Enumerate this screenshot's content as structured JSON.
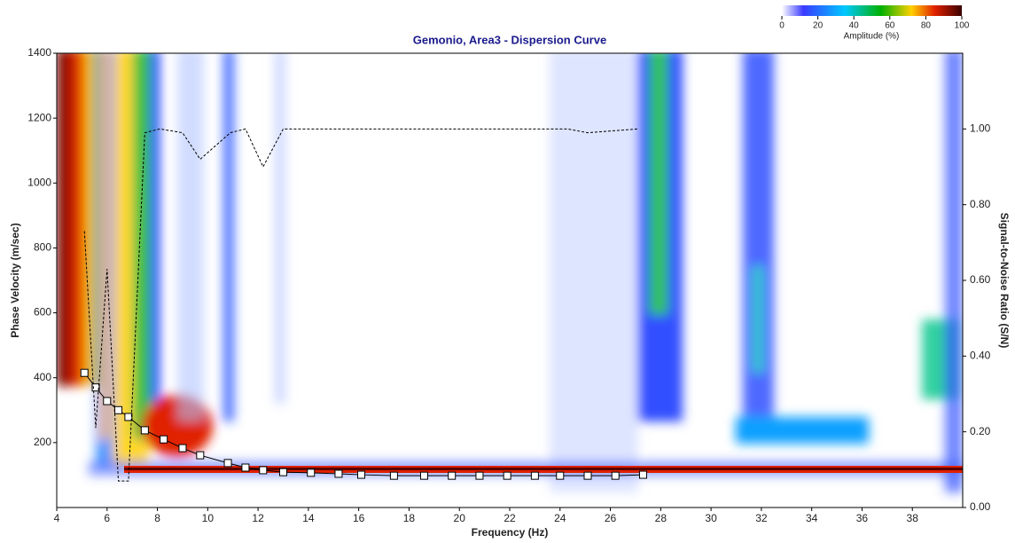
{
  "chart_data": {
    "type": "scatter",
    "title": "Gemonio, Area3 - Dispersion Curve",
    "x_label": "Frequency (Hz)",
    "y_label": "Phase Velocity (m/sec)",
    "y2_label": "Signal-to-Noise Ratio (S/N)",
    "xlim": [
      4,
      40
    ],
    "xticks": [
      4,
      6,
      8,
      10,
      12,
      14,
      16,
      18,
      20,
      22,
      24,
      26,
      28,
      30,
      32,
      34,
      36,
      38
    ],
    "ylim": [
      0,
      1400
    ],
    "yticks": [
      200,
      400,
      600,
      800,
      1000,
      1200,
      1400
    ],
    "y2lim": [
      0,
      1.2
    ],
    "y2ticks": [
      {
        "value": 0,
        "label": "0.00"
      },
      {
        "value": 0.2,
        "label": "0.20"
      },
      {
        "value": 0.4,
        "label": "0.40"
      },
      {
        "value": 0.6,
        "label": "0.60"
      },
      {
        "value": 0.8,
        "label": "0.80"
      },
      {
        "value": 1,
        "label": "1.00"
      }
    ],
    "colorbar": {
      "label": "Amplitude (%)",
      "lim": [
        0,
        100
      ],
      "ticks": [
        0,
        20,
        40,
        60,
        80,
        100
      ]
    },
    "series": [
      {
        "color": "#ffffff",
        "x": [
          5.1,
          5.55,
          6.0,
          6.45,
          6.85,
          7.5,
          8.25,
          9.0,
          9.7,
          10.8,
          11.5,
          12.2,
          13.0,
          14.1,
          15.2,
          16.1,
          17.4,
          18.6,
          19.7,
          20.8,
          21.9,
          23.0,
          24.0,
          25.1,
          26.2,
          27.3
        ],
        "values": [
          415,
          370,
          328,
          300,
          279,
          238,
          210,
          183,
          161,
          137,
          123,
          115,
          109,
          107,
          104,
          101,
          98,
          98,
          98,
          98,
          98,
          98,
          98,
          98,
          98,
          101
        ]
      },
      {
        "color": "#000000",
        "axis": "y2",
        "line": "dashed",
        "x": [
          5.1,
          5.55,
          6.0,
          6.45,
          6.85,
          7.5,
          8.1,
          9.0,
          9.7,
          10.9,
          11.5,
          12.2,
          13.0,
          24.3,
          25.1,
          27.1
        ],
        "values": [
          0.73,
          0.21,
          0.63,
          0.07,
          0.07,
          0.99,
          1.0,
          0.99,
          0.92,
          0.99,
          1.0,
          0.9,
          1.0,
          1.0,
          0.99,
          1.0
        ]
      }
    ]
  }
}
